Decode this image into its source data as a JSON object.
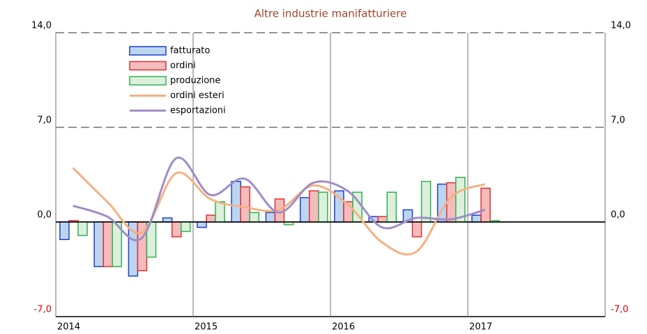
{
  "chart_data": {
    "type": "bar",
    "title": "Altre industrie manifatturiere",
    "categories": [
      "2014",
      null,
      null,
      null,
      "2015",
      null,
      null,
      null,
      "2016",
      null,
      null,
      null,
      "2017",
      null,
      null,
      null
    ],
    "series": [
      {
        "name": "fatturato",
        "type": "bar",
        "color": "#1f3fd0",
        "fill": "#bcd6f2",
        "values": [
          -1.3,
          -3.3,
          -4.0,
          0.3,
          -0.4,
          3.0,
          0.7,
          1.8,
          2.3,
          0.4,
          0.9,
          2.8,
          0.5,
          null,
          null,
          null
        ]
      },
      {
        "name": "ordini",
        "type": "bar",
        "color": "#e03030",
        "fill": "#f4bcbc",
        "values": [
          0.1,
          -3.3,
          -3.6,
          -1.1,
          0.5,
          2.6,
          1.7,
          2.3,
          1.5,
          0.4,
          -1.1,
          2.9,
          2.5,
          null,
          null,
          null
        ]
      },
      {
        "name": "produzione",
        "type": "bar",
        "color": "#30b050",
        "fill": "#dcf0dc",
        "values": [
          -1.0,
          -3.3,
          -2.6,
          -0.7,
          1.5,
          0.7,
          -0.2,
          2.2,
          2.2,
          2.2,
          3.0,
          3.3,
          0.1,
          null,
          null,
          null
        ]
      },
      {
        "name": "ordini esteri",
        "type": "line",
        "color": "#f4b183",
        "values": [
          4.0,
          1.5,
          -0.8,
          3.6,
          1.7,
          1.1,
          0.9,
          2.7,
          1.3,
          -1.5,
          -2.2,
          1.8,
          2.8,
          null,
          null,
          null
        ]
      },
      {
        "name": "esportazioni",
        "type": "line",
        "color": "#a08cc8",
        "values": [
          1.2,
          0.4,
          -1.2,
          4.7,
          2.0,
          3.2,
          0.7,
          2.9,
          2.3,
          -0.4,
          0.3,
          0.2,
          0.9,
          null,
          null,
          null
        ]
      }
    ],
    "ylim": [
      -7,
      14
    ],
    "yticks": [
      {
        "value": -7,
        "label": "-7,0"
      },
      {
        "value": 0,
        "label": "0,0"
      },
      {
        "value": 7,
        "label": "7,0"
      },
      {
        "value": 14,
        "label": "14,0"
      }
    ],
    "y2lim": [
      -7,
      14
    ],
    "y2ticks": [
      {
        "value": -7,
        "label": "-7,0"
      },
      {
        "value": 0,
        "label": "0,0"
      },
      {
        "value": 7,
        "label": "7,0"
      },
      {
        "value": 14,
        "label": "14,0"
      }
    ],
    "grid": true,
    "legend": "upper left"
  }
}
